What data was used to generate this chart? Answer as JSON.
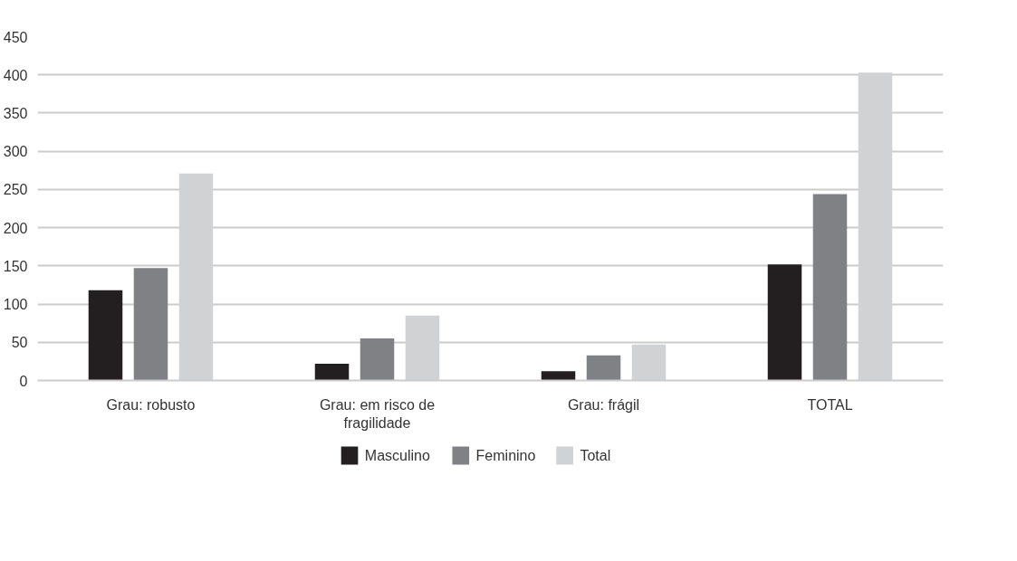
{
  "chart_data": {
    "type": "bar",
    "categories": [
      "Grau: robusto",
      "Grau: em risco de fragilidade",
      "Grau: frágil",
      "TOTAL"
    ],
    "series": [
      {
        "name": "Masculino",
        "color": "#231f20",
        "values": [
          118,
          22,
          12,
          152
        ]
      },
      {
        "name": "Feminino",
        "color": "#808184",
        "values": [
          147,
          55,
          33,
          244
        ]
      },
      {
        "name": "Total",
        "color": "#d1d2d4",
        "values": [
          271,
          85,
          47,
          403
        ]
      }
    ],
    "ylim": [
      0,
      450
    ],
    "yticks": [
      0,
      50,
      100,
      150,
      200,
      250,
      300,
      350,
      400,
      450
    ],
    "grid": "y",
    "legend": "bottom"
  }
}
